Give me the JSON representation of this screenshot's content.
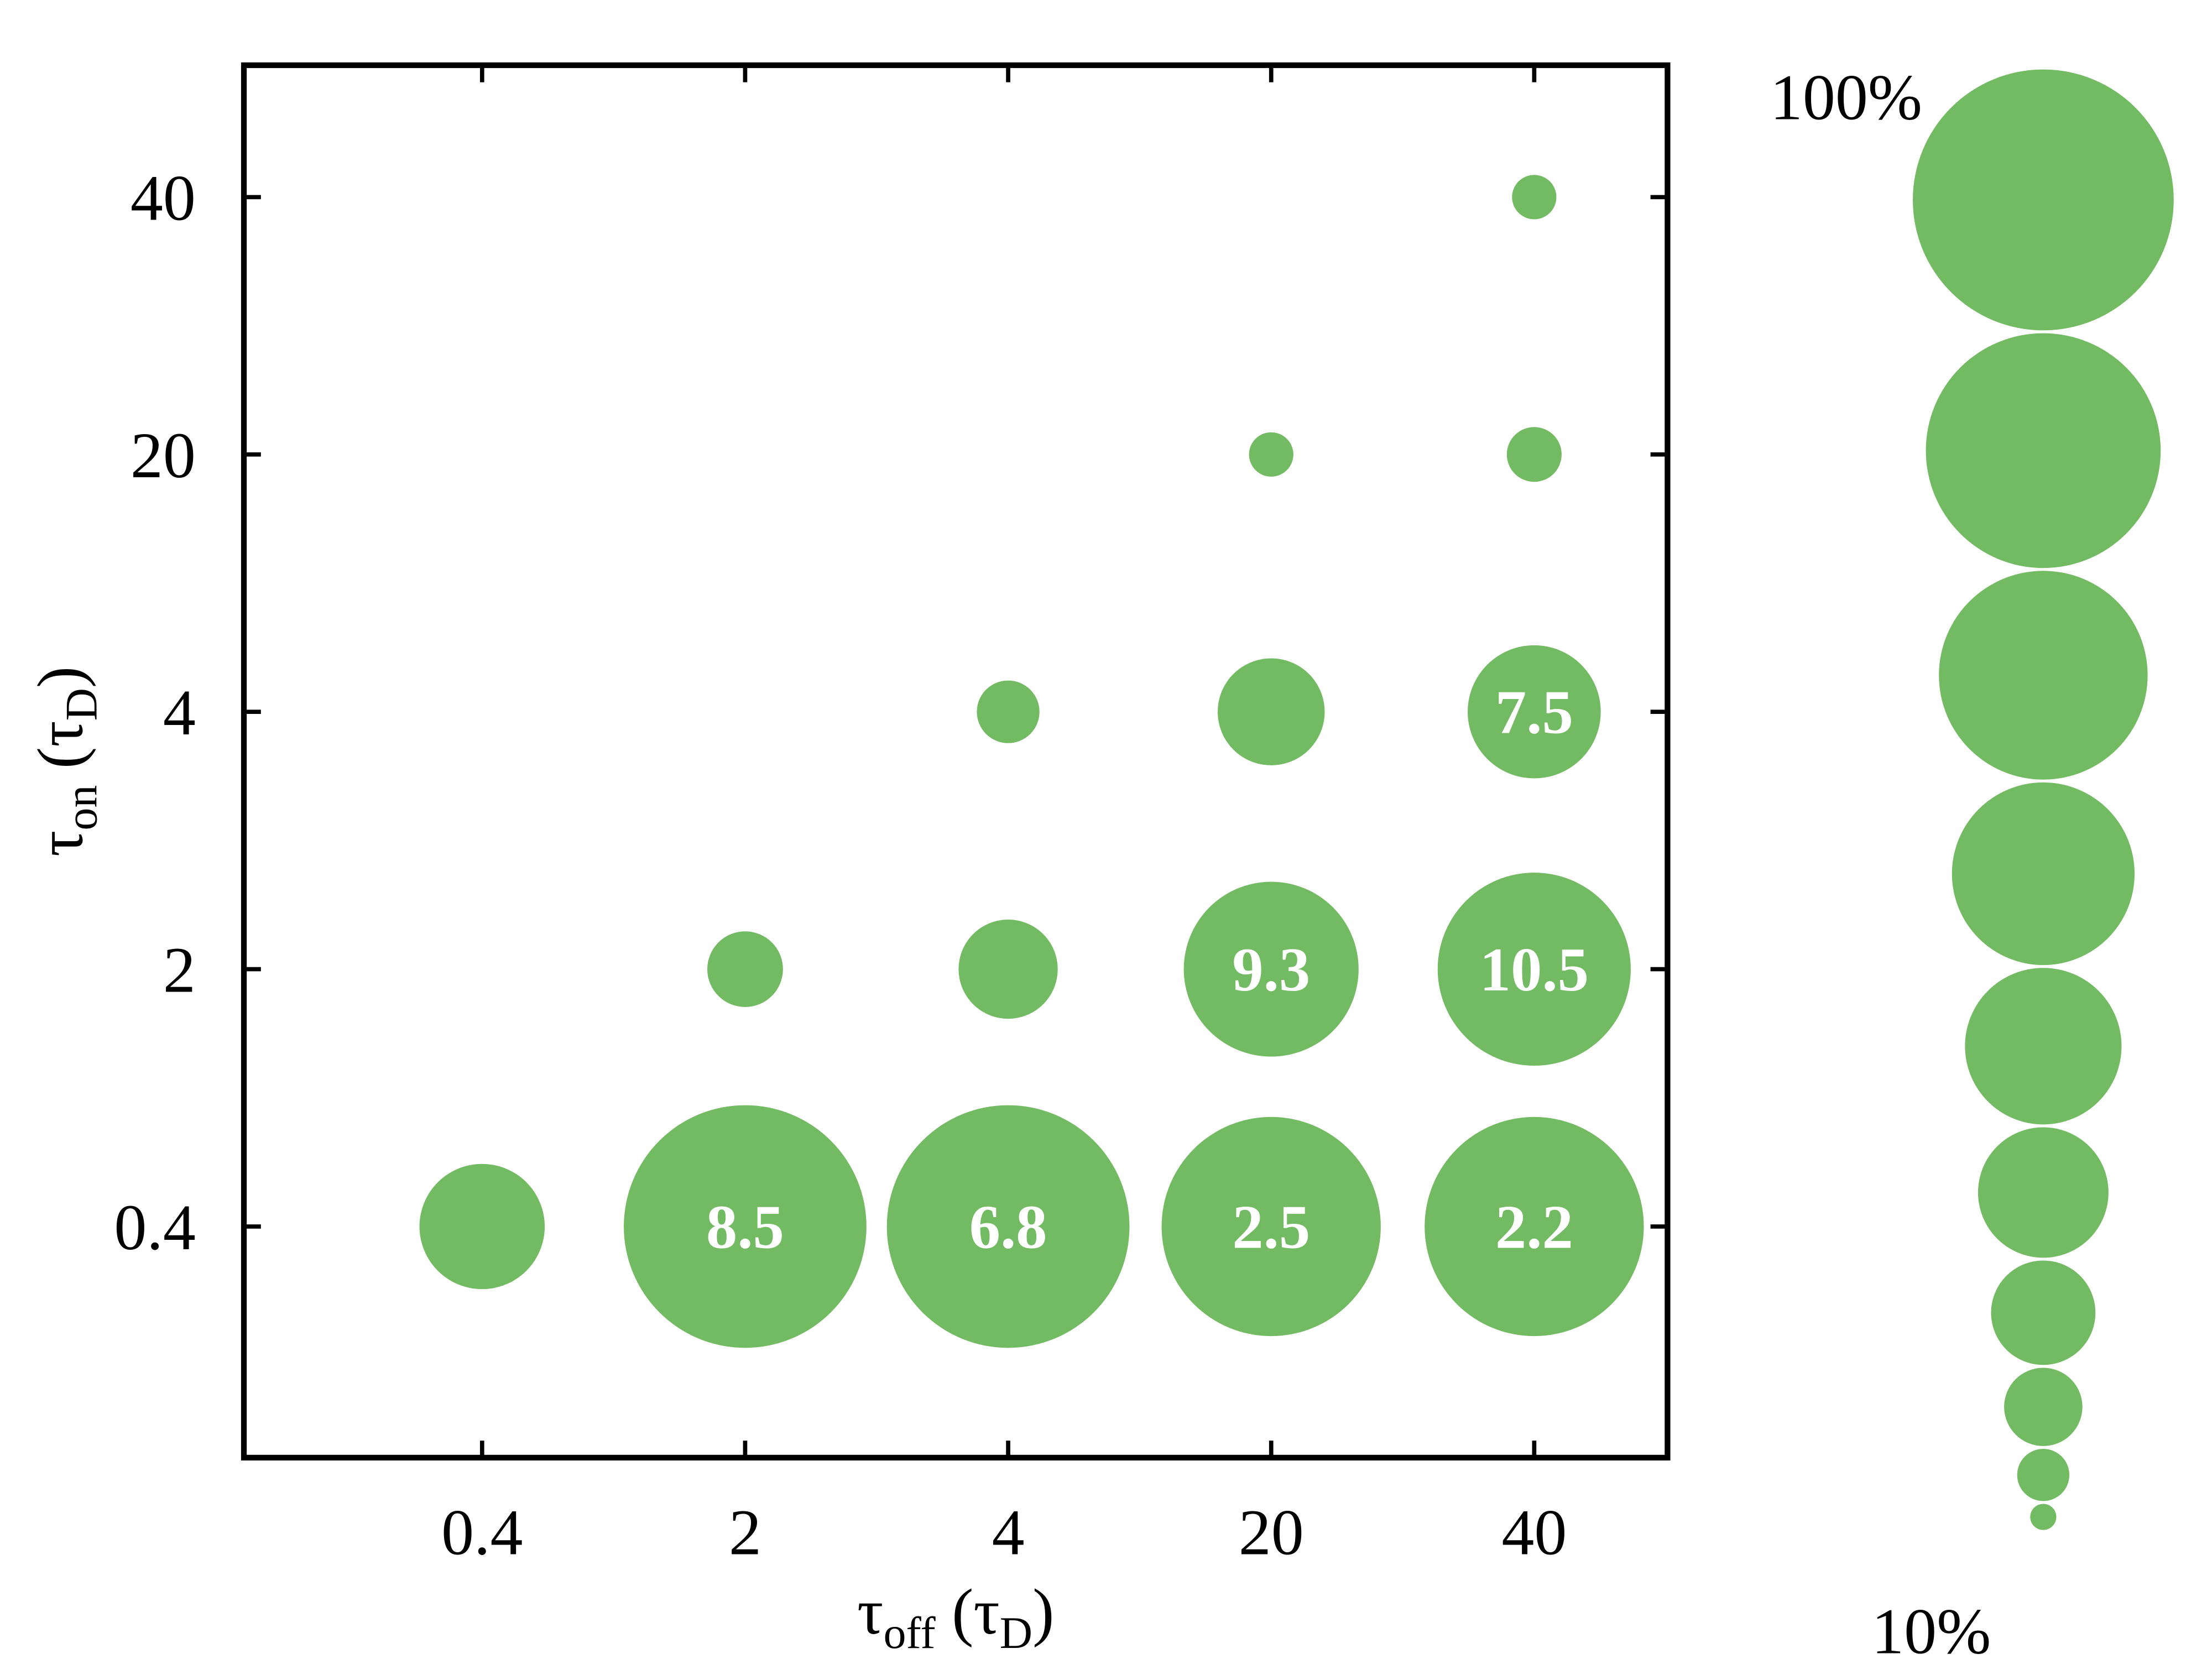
{
  "chart_data": {
    "type": "bubble",
    "xlabel": [
      "τ",
      "off",
      " (τ",
      "D",
      ")"
    ],
    "ylabel": [
      "τ",
      "on",
      " (τ",
      "D",
      ")"
    ],
    "x_categories": [
      "0.4",
      "2",
      "4",
      "20",
      "40"
    ],
    "y_categories": [
      "0.4",
      "2",
      "4",
      "20",
      "40"
    ],
    "color": "#73bb62",
    "points": [
      {
        "x": "0.4",
        "y": "0.4",
        "size": 48
      },
      {
        "x": "2",
        "y": "0.4",
        "size": 93,
        "label": 8.5
      },
      {
        "x": "4",
        "y": "0.4",
        "size": 93,
        "label": 6.8
      },
      {
        "x": "20",
        "y": "0.4",
        "size": 84,
        "label": 2.5
      },
      {
        "x": "40",
        "y": "0.4",
        "size": 84,
        "label": 2.2
      },
      {
        "x": "2",
        "y": "2",
        "size": 29
      },
      {
        "x": "4",
        "y": "2",
        "size": 38
      },
      {
        "x": "20",
        "y": "2",
        "size": 67,
        "label": 9.3
      },
      {
        "x": "40",
        "y": "2",
        "size": 74,
        "label": 10.5
      },
      {
        "x": "4",
        "y": "4",
        "size": 24
      },
      {
        "x": "20",
        "y": "4",
        "size": 41
      },
      {
        "x": "40",
        "y": "4",
        "size": 51,
        "label": 7.5
      },
      {
        "x": "20",
        "y": "20",
        "size": 17
      },
      {
        "x": "40",
        "y": "20",
        "size": 21
      },
      {
        "x": "40",
        "y": "40",
        "size": 17
      }
    ],
    "size_legend": {
      "values": [
        100,
        90,
        80,
        70,
        60,
        50,
        40,
        30,
        20,
        10
      ],
      "max_label": "100%",
      "min_label": "10%"
    }
  }
}
